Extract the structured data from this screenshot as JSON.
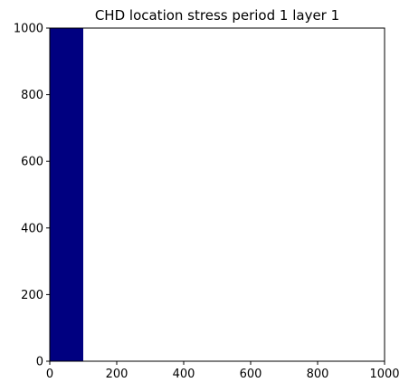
{
  "chart_data": {
    "type": "heatmap",
    "title": "CHD location stress period 1 layer 1",
    "xlabel": "",
    "ylabel": "",
    "xlim": [
      0,
      1000
    ],
    "ylim": [
      0,
      1000
    ],
    "xticks": [
      0,
      200,
      400,
      600,
      800,
      1000
    ],
    "yticks": [
      0,
      200,
      400,
      600,
      800,
      1000
    ],
    "grid": false,
    "cells": [
      {
        "x0": 0,
        "x1": 100,
        "y0": 0,
        "y1": 1000,
        "color": "#000080"
      }
    ],
    "background": "#ffffff"
  }
}
